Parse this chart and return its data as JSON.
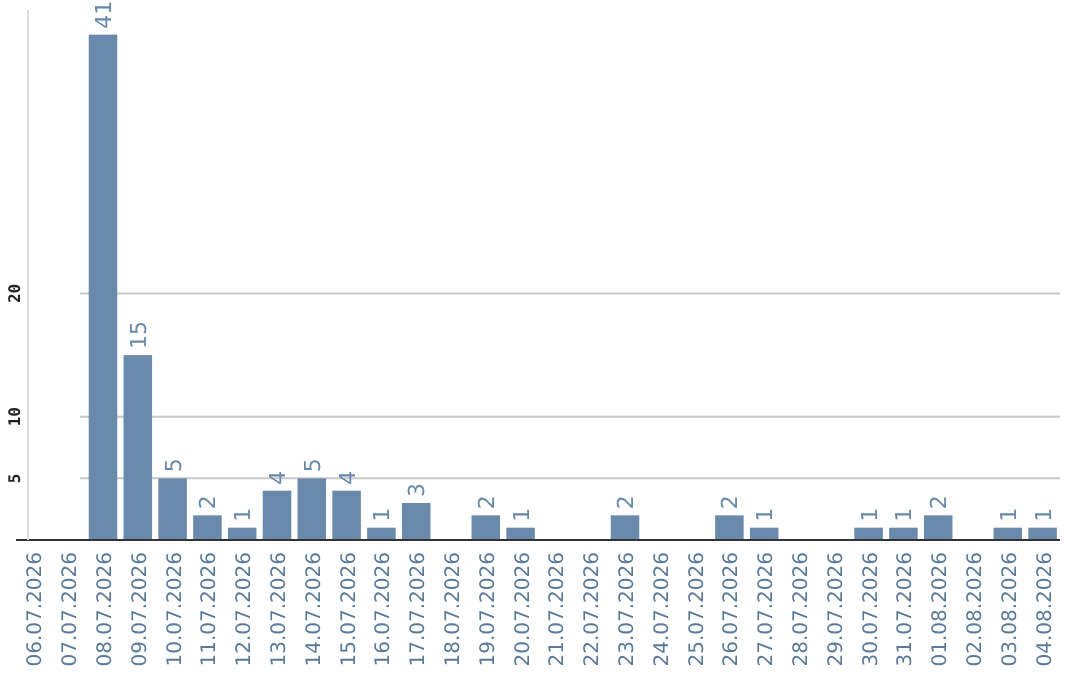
{
  "chart_data": {
    "type": "bar",
    "categories": [
      "06.07.2026",
      "07.07.2026",
      "08.07.2026",
      "09.07.2026",
      "10.07.2026",
      "11.07.2026",
      "12.07.2026",
      "13.07.2026",
      "14.07.2026",
      "15.07.2026",
      "16.07.2026",
      "17.07.2026",
      "18.07.2026",
      "19.07.2026",
      "20.07.2026",
      "21.07.2026",
      "22.07.2026",
      "23.07.2026",
      "24.07.2026",
      "25.07.2026",
      "26.07.2026",
      "27.07.2026",
      "28.07.2026",
      "29.07.2026",
      "30.07.2026",
      "31.07.2026",
      "01.08.2026",
      "02.08.2026",
      "03.08.2026",
      "04.08.2026"
    ],
    "values": [
      null,
      null,
      41,
      15,
      5,
      2,
      1,
      4,
      5,
      4,
      1,
      3,
      null,
      2,
      1,
      null,
      null,
      2,
      null,
      null,
      2,
      1,
      null,
      null,
      1,
      1,
      2,
      null,
      1,
      1
    ],
    "color": "#6a8aab",
    "ylim": [
      0,
      43
    ],
    "yticks": [
      5,
      10,
      20
    ],
    "grid": "y",
    "data_labels": true
  }
}
